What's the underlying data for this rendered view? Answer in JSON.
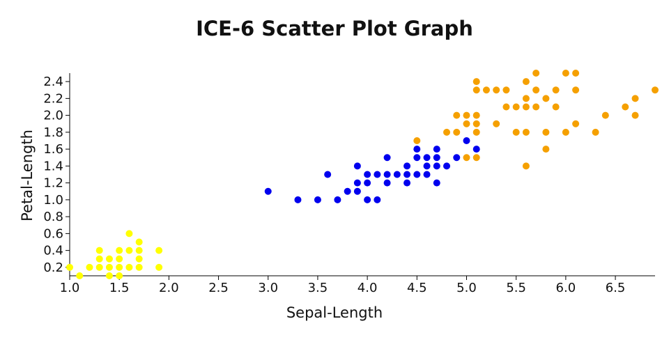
{
  "chart_data": {
    "type": "scatter",
    "title": "ICE-6 Scatter Plot Graph",
    "xlabel": "Sepal-Length",
    "ylabel": "Petal-Length",
    "xlim": [
      1.0,
      6.9
    ],
    "ylim": [
      0.1,
      2.5
    ],
    "xticks": [
      "1.0",
      "1.5",
      "2.0",
      "2.5",
      "3.0",
      "3.5",
      "4.0",
      "4.5",
      "5.0",
      "5.5",
      "6.0",
      "6.5"
    ],
    "yticks": [
      "0.2",
      "0.4",
      "0.6",
      "0.8",
      "1.0",
      "1.2",
      "1.4",
      "1.6",
      "1.8",
      "2.0",
      "2.2",
      "2.4"
    ],
    "grid": false,
    "legend": "none",
    "series": [
      {
        "color": "#ffff00",
        "points": [
          [
            1.0,
            0.2
          ],
          [
            1.1,
            0.1
          ],
          [
            1.2,
            0.2
          ],
          [
            1.3,
            0.2
          ],
          [
            1.3,
            0.3
          ],
          [
            1.3,
            0.4
          ],
          [
            1.4,
            0.1
          ],
          [
            1.4,
            0.2
          ],
          [
            1.4,
            0.3
          ],
          [
            1.5,
            0.1
          ],
          [
            1.5,
            0.2
          ],
          [
            1.5,
            0.3
          ],
          [
            1.5,
            0.4
          ],
          [
            1.6,
            0.2
          ],
          [
            1.6,
            0.4
          ],
          [
            1.6,
            0.6
          ],
          [
            1.7,
            0.2
          ],
          [
            1.7,
            0.3
          ],
          [
            1.7,
            0.4
          ],
          [
            1.7,
            0.5
          ],
          [
            1.9,
            0.2
          ],
          [
            1.9,
            0.4
          ]
        ]
      },
      {
        "color": "#0000ee",
        "points": [
          [
            3.0,
            1.1
          ],
          [
            3.3,
            1.0
          ],
          [
            3.5,
            1.0
          ],
          [
            3.6,
            1.3
          ],
          [
            3.7,
            1.0
          ],
          [
            3.8,
            1.1
          ],
          [
            3.9,
            1.1
          ],
          [
            3.9,
            1.2
          ],
          [
            3.9,
            1.4
          ],
          [
            4.0,
            1.0
          ],
          [
            4.0,
            1.2
          ],
          [
            4.0,
            1.3
          ],
          [
            4.1,
            1.0
          ],
          [
            4.1,
            1.3
          ],
          [
            4.2,
            1.2
          ],
          [
            4.2,
            1.3
          ],
          [
            4.2,
            1.5
          ],
          [
            4.3,
            1.3
          ],
          [
            4.4,
            1.2
          ],
          [
            4.4,
            1.3
          ],
          [
            4.4,
            1.4
          ],
          [
            4.5,
            1.3
          ],
          [
            4.5,
            1.5
          ],
          [
            4.5,
            1.6
          ],
          [
            4.6,
            1.3
          ],
          [
            4.6,
            1.4
          ],
          [
            4.6,
            1.5
          ],
          [
            4.7,
            1.2
          ],
          [
            4.7,
            1.4
          ],
          [
            4.7,
            1.5
          ],
          [
            4.7,
            1.6
          ],
          [
            4.8,
            1.4
          ],
          [
            4.9,
            1.5
          ],
          [
            5.0,
            1.7
          ],
          [
            5.1,
            1.6
          ]
        ]
      },
      {
        "color": "#f5a000",
        "points": [
          [
            4.5,
            1.7
          ],
          [
            4.8,
            1.8
          ],
          [
            4.9,
            1.8
          ],
          [
            4.9,
            2.0
          ],
          [
            5.0,
            1.5
          ],
          [
            5.0,
            1.9
          ],
          [
            5.0,
            2.0
          ],
          [
            5.1,
            1.5
          ],
          [
            5.1,
            1.8
          ],
          [
            5.1,
            1.9
          ],
          [
            5.1,
            2.0
          ],
          [
            5.1,
            2.3
          ],
          [
            5.1,
            2.4
          ],
          [
            5.2,
            2.3
          ],
          [
            5.3,
            1.9
          ],
          [
            5.3,
            2.3
          ],
          [
            5.4,
            2.1
          ],
          [
            5.4,
            2.3
          ],
          [
            5.5,
            1.8
          ],
          [
            5.5,
            2.1
          ],
          [
            5.6,
            1.4
          ],
          [
            5.6,
            1.8
          ],
          [
            5.6,
            2.1
          ],
          [
            5.6,
            2.2
          ],
          [
            5.6,
            2.4
          ],
          [
            5.7,
            2.1
          ],
          [
            5.7,
            2.3
          ],
          [
            5.7,
            2.5
          ],
          [
            5.8,
            1.6
          ],
          [
            5.8,
            1.8
          ],
          [
            5.8,
            2.2
          ],
          [
            5.9,
            2.1
          ],
          [
            5.9,
            2.3
          ],
          [
            6.0,
            1.8
          ],
          [
            6.0,
            2.5
          ],
          [
            6.1,
            1.9
          ],
          [
            6.1,
            2.3
          ],
          [
            6.1,
            2.5
          ],
          [
            6.3,
            1.8
          ],
          [
            6.4,
            2.0
          ],
          [
            6.6,
            2.1
          ],
          [
            6.7,
            2.0
          ],
          [
            6.7,
            2.2
          ],
          [
            6.9,
            2.3
          ]
        ]
      }
    ]
  }
}
